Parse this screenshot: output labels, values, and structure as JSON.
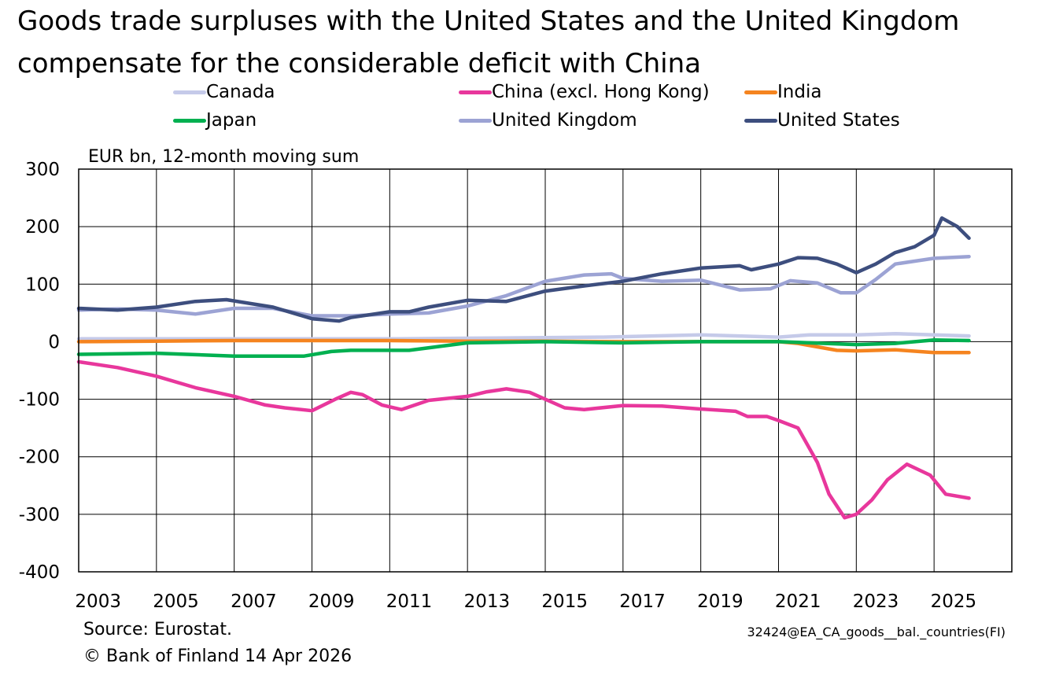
{
  "title_line1": "Goods trade surpluses with the United States and the United Kingdom",
  "title_line2": "compensate for the considerable deficit with China",
  "source": "Source: Eurostat.",
  "copyright": "© Bank of Finland 14 Apr 2026",
  "code": "32424@EA_CA_goods__bal._countries(FI)",
  "chart_data": {
    "type": "line",
    "ylabel": "EUR bn, 12-month moving sum",
    "ylim": [
      -400,
      300
    ],
    "yticks": [
      300,
      200,
      100,
      0,
      -100,
      -200,
      -300,
      -400
    ],
    "yticklabels": [
      "300",
      "200",
      "100",
      "0",
      "-100",
      "-200",
      "-300",
      "-400"
    ],
    "xlim": [
      2003,
      2027
    ],
    "xticks": [
      2003,
      2005,
      2007,
      2009,
      2011,
      2013,
      2015,
      2017,
      2019,
      2021,
      2023,
      2025
    ],
    "xticklabels": [
      "2003",
      "2005",
      "2007",
      "2009",
      "2011",
      "2013",
      "2015",
      "2017",
      "2019",
      "2021",
      "2023",
      "2025"
    ],
    "grid": true,
    "legend_position": "top",
    "series": [
      {
        "name": "Canada",
        "color": "#c5cae9",
        "x": [
          2003,
          2005,
          2007,
          2009,
          2011,
          2013,
          2015,
          2016.5,
          2019,
          2021,
          2021.8,
          2023,
          2024,
          2025,
          2025.9
        ],
        "y": [
          5,
          5,
          5,
          5,
          5,
          6,
          7,
          8,
          12,
          8,
          12,
          12,
          14,
          12,
          10
        ]
      },
      {
        "name": "China (excl. Hong Kong)",
        "color": "#e8379c",
        "x": [
          2003,
          2004,
          2005,
          2006,
          2007,
          2007.8,
          2008.3,
          2009,
          2009.6,
          2010,
          2010.3,
          2010.8,
          2011.3,
          2012,
          2013,
          2013.5,
          2014,
          2014.6,
          2015.5,
          2016,
          2017,
          2018,
          2019,
          2019.9,
          2020.2,
          2020.7,
          2021,
          2021.5,
          2022,
          2022.3,
          2022.7,
          2023,
          2023.4,
          2023.8,
          2024.3,
          2024.9,
          2025.3,
          2025.9
        ],
        "y": [
          -35,
          -45,
          -60,
          -80,
          -95,
          -110,
          -115,
          -120,
          -100,
          -88,
          -92,
          -110,
          -118,
          -102,
          -95,
          -87,
          -82,
          -88,
          -115,
          -118,
          -111,
          -112,
          -117,
          -121,
          -130,
          -130,
          -137,
          -150,
          -210,
          -265,
          -306,
          -300,
          -275,
          -240,
          -213,
          -232,
          -265,
          -272
        ]
      },
      {
        "name": "India",
        "color": "#f5841f",
        "x": [
          2003,
          2005,
          2007,
          2009,
          2011,
          2013,
          2015,
          2017,
          2019,
          2021,
          2021.5,
          2022.5,
          2023,
          2024,
          2025,
          2025.9
        ],
        "y": [
          0,
          1,
          2,
          2,
          2,
          1,
          1,
          0,
          0,
          0,
          -3,
          -15,
          -16,
          -14,
          -19,
          -19
        ]
      },
      {
        "name": "Japan",
        "color": "#00b050",
        "x": [
          2003,
          2005,
          2007,
          2008.8,
          2009.5,
          2010,
          2011.5,
          2013,
          2015,
          2017,
          2019,
          2021,
          2023,
          2024,
          2025,
          2025.9
        ],
        "y": [
          -22,
          -20,
          -25,
          -25,
          -17,
          -15,
          -15,
          -2,
          0,
          -2,
          0,
          0,
          -5,
          -3,
          3,
          2
        ]
      },
      {
        "name": "United Kingdom",
        "color": "#9ca3d4",
        "x": [
          2003,
          2004,
          2005,
          2006,
          2007,
          2008,
          2009,
          2010,
          2011,
          2012,
          2013,
          2014,
          2015,
          2016,
          2016.7,
          2017,
          2018,
          2019,
          2020,
          2020.8,
          2021.3,
          2022,
          2022.6,
          2023,
          2023.5,
          2024,
          2025,
          2025.9
        ],
        "y": [
          55,
          57,
          55,
          48,
          58,
          58,
          45,
          45,
          48,
          50,
          62,
          80,
          105,
          116,
          118,
          110,
          105,
          107,
          90,
          92,
          106,
          102,
          85,
          85,
          108,
          135,
          145,
          148
        ]
      },
      {
        "name": "United States",
        "color": "#3d4e7e",
        "x": [
          2003,
          2004,
          2005,
          2006,
          2006.8,
          2008,
          2009,
          2009.7,
          2010,
          2011,
          2011.5,
          2012,
          2013,
          2014,
          2015,
          2016,
          2017,
          2018,
          2019,
          2020,
          2020.3,
          2021,
          2021.5,
          2022,
          2022.5,
          2023,
          2023.5,
          2024,
          2024.5,
          2025,
          2025.2,
          2025.6,
          2025.9
        ],
        "y": [
          58,
          55,
          60,
          70,
          73,
          60,
          40,
          36,
          42,
          52,
          52,
          60,
          72,
          70,
          88,
          97,
          105,
          118,
          128,
          132,
          125,
          135,
          146,
          145,
          135,
          120,
          135,
          155,
          165,
          185,
          215,
          200,
          180
        ]
      }
    ]
  }
}
